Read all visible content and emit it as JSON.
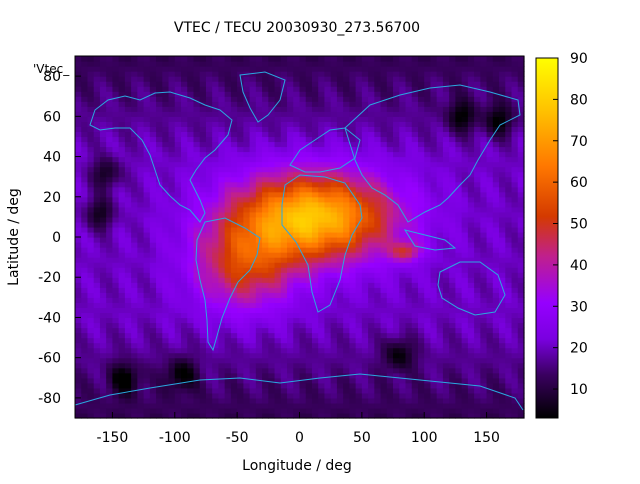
{
  "chart_data": {
    "type": "heatmap",
    "title": "VTEC / TECU 20030930_273.56700",
    "xlabel": "Longitude / deg",
    "ylabel": "Latitude / deg",
    "xlim": [
      -180,
      180
    ],
    "ylim": [
      -90,
      90
    ],
    "x_ticks": [
      -150,
      -100,
      -50,
      0,
      50,
      100,
      150
    ],
    "y_ticks": [
      -80,
      -60,
      -40,
      -20,
      0,
      20,
      40,
      60,
      80
    ],
    "colorbar": {
      "min": 3,
      "max": 90,
      "ticks": [
        10,
        20,
        30,
        40,
        50,
        60,
        70,
        80,
        90
      ]
    },
    "legend_label": "'Vtec_",
    "grid_step_deg": {
      "lon": 5,
      "lat": 2.5
    },
    "peak": {
      "lon": 10,
      "lat": 10,
      "value": 78
    },
    "secondary_peak": {
      "lon": 85,
      "lat": -7,
      "value": 50
    },
    "background_value": 20
  }
}
